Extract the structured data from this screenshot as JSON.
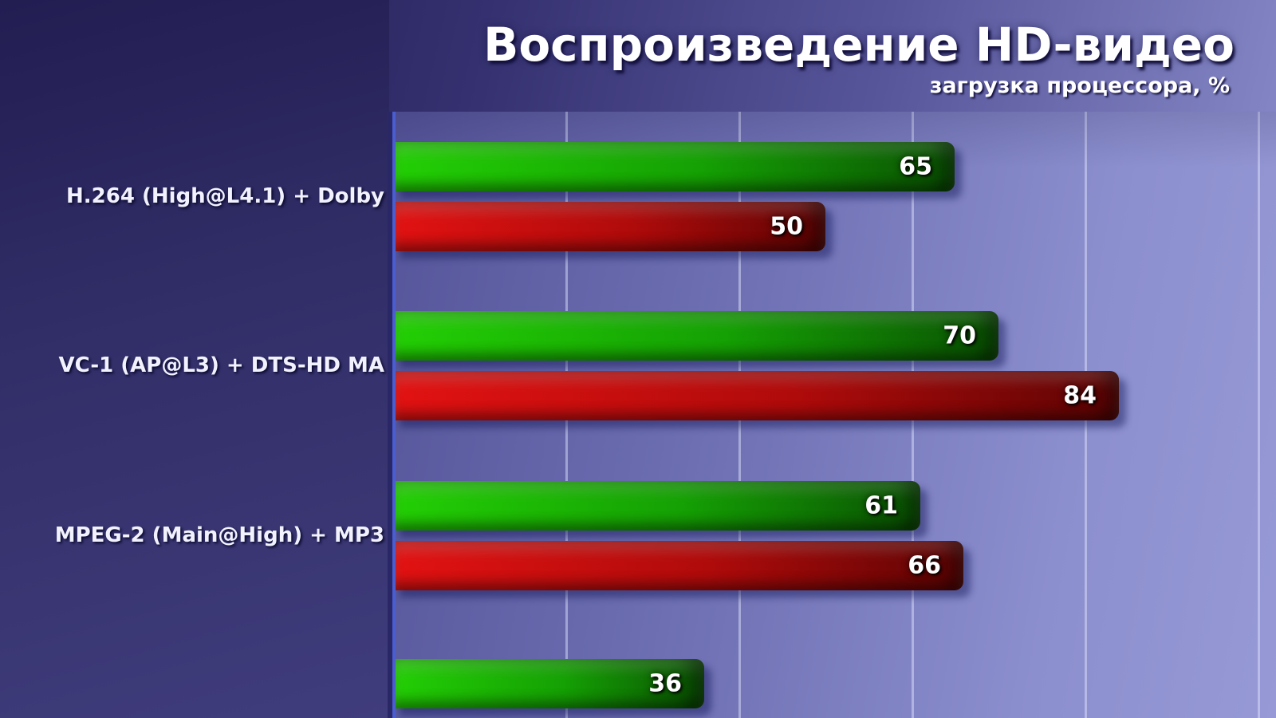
{
  "title": "Воспроизведение HD-видео",
  "subtitle": "загрузка процессора, %",
  "chart_data": {
    "type": "bar",
    "orientation": "horizontal",
    "title": "Воспроизведение HD-видео",
    "subtitle": "загрузка процессора, %",
    "xlabel": "загрузка процессора, %",
    "xlim": [
      0,
      100
    ],
    "gridlines": [
      20,
      40,
      60,
      80,
      100
    ],
    "legend": "none",
    "categories": [
      "H.264 (High@L4.1) + Dolby",
      "VC-1 (AP@L3) + DTS-HD MA",
      "MPEG-2 (Main@High) + MP3",
      ""
    ],
    "series": [
      {
        "name": "green",
        "color": "#23cf05",
        "values": [
          65,
          70,
          61,
          36
        ]
      },
      {
        "name": "red",
        "color": "#e21212",
        "values": [
          50,
          84,
          66,
          null
        ]
      }
    ]
  },
  "colors": {
    "background_dark": "#191546",
    "background_light": "#9295d2",
    "panel": "#322e68",
    "green_bright": "#23cf05",
    "green_dark": "#0a5203",
    "red_bright": "#e21212",
    "red_dark": "#5e0404",
    "gridline": "#e2e5fc",
    "axis_blue": "#4a5ecf",
    "text": "#ffffff"
  }
}
